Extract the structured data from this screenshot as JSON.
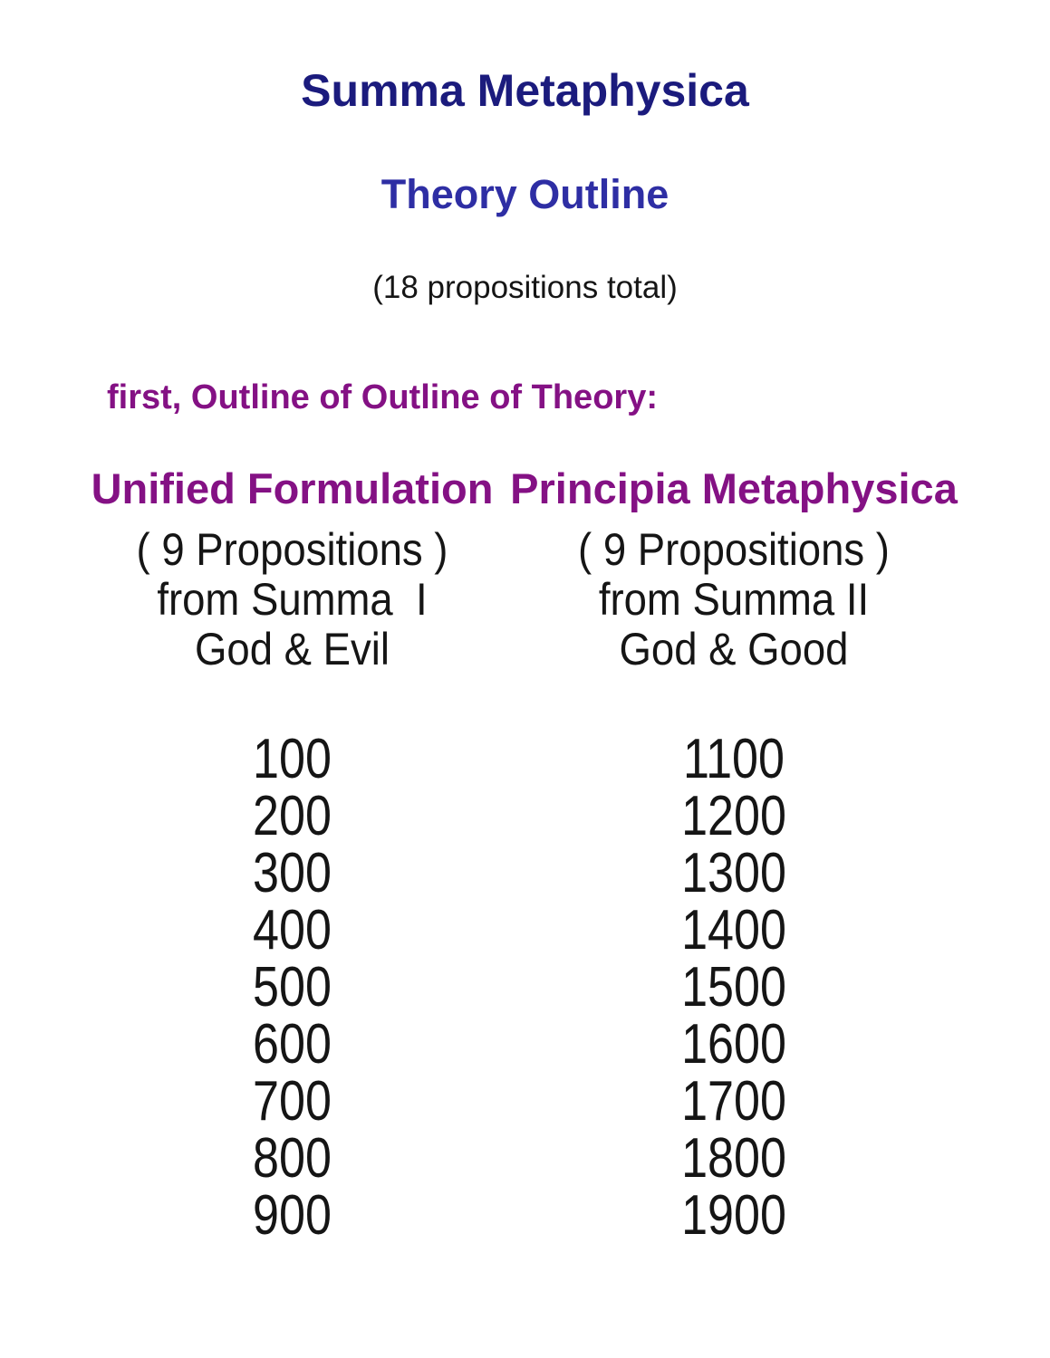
{
  "page": {
    "title": "Summa Metaphysica",
    "subtitle": "Theory Outline",
    "propositions_note": "(18 propositions total)",
    "outline_intro": "first, Outline of Outline of Theory:"
  },
  "columns": [
    {
      "heading": "Unified Formulation",
      "sub_lines": [
        "( 9 Propositions )",
        "from Summa  I",
        "God & Evil"
      ],
      "numbers": [
        "100",
        "200",
        "300",
        "400",
        "500",
        "600",
        "700",
        "800",
        "900"
      ]
    },
    {
      "heading": "Principia Metaphysica",
      "sub_lines": [
        "( 9 Propositions )",
        "from Summa II",
        "God & Good"
      ],
      "numbers": [
        "1100",
        "1200",
        "1300",
        "1400",
        "1500",
        "1600",
        "1700",
        "1800",
        "1900"
      ]
    }
  ],
  "colors": {
    "background": "#ffffff",
    "title_navy": "#1b1b7d",
    "subtitle_blue": "#2e2ea4",
    "purple": "#841184",
    "body_text": "#151515"
  }
}
